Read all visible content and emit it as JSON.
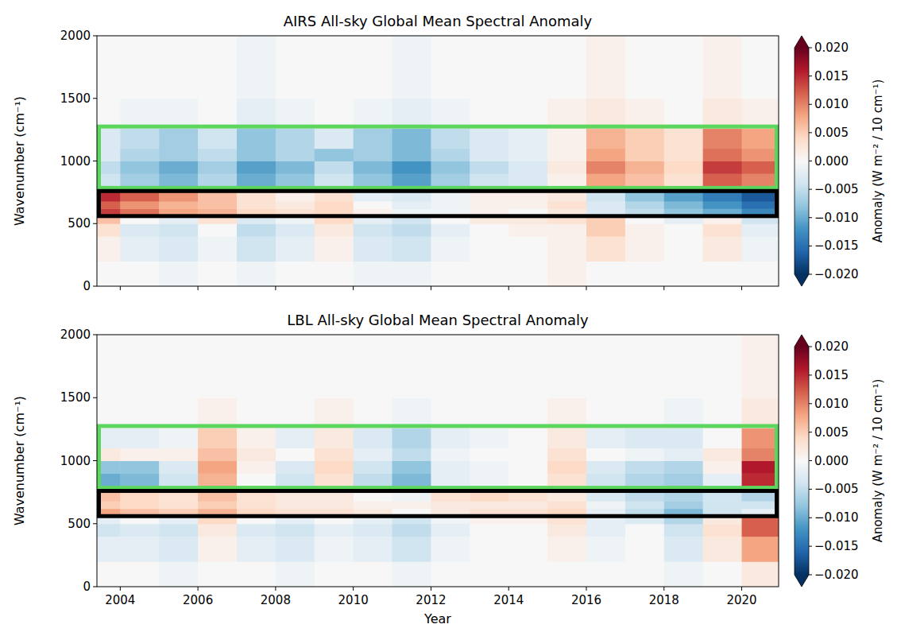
{
  "chart_data": [
    {
      "type": "heatmap",
      "title": "AIRS All-sky Global Mean Spectral Anomaly",
      "y_label": "Wavenumber (cm⁻¹)",
      "xlim": [
        2003.4,
        2020.95
      ],
      "ylim": [
        0,
        2000
      ],
      "xticks": [
        2004,
        2006,
        2008,
        2010,
        2012,
        2014,
        2016,
        2018,
        2020
      ],
      "yticks": [
        0,
        500,
        1000,
        1500,
        2000
      ],
      "tick_labels": "y",
      "grid": false,
      "x_edges": [
        2003.4,
        2004,
        2005,
        2006,
        2007,
        2008,
        2009,
        2010,
        2011,
        2012,
        2013,
        2014,
        2015,
        2016,
        2017,
        2018,
        2019,
        2020,
        2020.95
      ],
      "y_edges": [
        0,
        200,
        400,
        500,
        560,
        620,
        680,
        760,
        800,
        900,
        1000,
        1100,
        1260,
        1500,
        2000
      ],
      "cells": [
        [
          0,
          0,
          -0.001,
          0,
          -0.001,
          0,
          0,
          -0.001,
          -0.001,
          0,
          0,
          0,
          0.001,
          0,
          0,
          0,
          0,
          0
        ],
        [
          0.001,
          -0.002,
          -0.003,
          -0.001,
          -0.004,
          -0.002,
          0.001,
          -0.003,
          -0.004,
          -0.001,
          0,
          0,
          0.001,
          0.003,
          0.001,
          0,
          0.002,
          -0.001
        ],
        [
          0.003,
          -0.003,
          -0.004,
          0,
          -0.005,
          -0.003,
          0.002,
          -0.004,
          -0.005,
          -0.002,
          0,
          0.001,
          0.001,
          0.005,
          0.001,
          0,
          0.003,
          -0.002
        ],
        [
          0.006,
          0,
          -0.002,
          0.003,
          -0.003,
          -0.001,
          0.004,
          -0.002,
          -0.004,
          0,
          0.002,
          0.002,
          0.003,
          0.005,
          0,
          -0.002,
          0.001,
          -0.004
        ],
        [
          0.014,
          0.011,
          0.008,
          0.007,
          0.004,
          0.003,
          0.004,
          0.001,
          -0.001,
          -0.001,
          0.001,
          0,
          0.002,
          -0.003,
          -0.005,
          -0.008,
          -0.01,
          -0.013
        ],
        [
          0.012,
          0.009,
          0.007,
          0.006,
          0.003,
          0.002,
          0.004,
          0,
          -0.002,
          -0.001,
          0.001,
          0.001,
          0.003,
          -0.003,
          -0.006,
          -0.009,
          -0.012,
          -0.015
        ],
        [
          0.015,
          0.012,
          0.009,
          0.006,
          0.003,
          0.001,
          0.003,
          -0.002,
          -0.003,
          -0.001,
          0.001,
          0.001,
          0.002,
          -0.004,
          -0.008,
          -0.011,
          -0.014,
          -0.017
        ],
        [
          0.004,
          0,
          -0.002,
          0.001,
          -0.003,
          -0.002,
          0.002,
          -0.003,
          -0.004,
          -0.002,
          0,
          0.001,
          0.002,
          0.004,
          -0.001,
          -0.002,
          -0.002,
          -0.005
        ],
        [
          -0.004,
          -0.007,
          -0.009,
          -0.006,
          -0.01,
          -0.008,
          -0.004,
          -0.008,
          -0.011,
          -0.007,
          -0.004,
          -0.003,
          0.001,
          0.008,
          0.006,
          0.003,
          0.012,
          0.01
        ],
        [
          -0.005,
          -0.008,
          -0.01,
          -0.007,
          -0.011,
          -0.009,
          -0.005,
          -0.009,
          -0.012,
          -0.008,
          -0.005,
          -0.003,
          0.002,
          0.01,
          0.007,
          0.004,
          0.014,
          0.012
        ],
        [
          -0.003,
          -0.006,
          -0.007,
          -0.005,
          -0.008,
          -0.006,
          -0.008,
          -0.007,
          -0.009,
          -0.006,
          -0.003,
          -0.002,
          0.001,
          0.008,
          0.005,
          0.003,
          0.011,
          0.009
        ],
        [
          -0.003,
          -0.005,
          -0.007,
          -0.004,
          -0.008,
          -0.006,
          -0.003,
          -0.007,
          -0.009,
          -0.005,
          -0.003,
          -0.002,
          0.001,
          0.007,
          0.005,
          0.003,
          0.01,
          0.008
        ],
        [
          0,
          -0.001,
          -0.001,
          0,
          -0.002,
          -0.001,
          0,
          -0.001,
          -0.002,
          -0.001,
          0,
          0,
          0.001,
          0.002,
          0.001,
          0,
          0.002,
          0.001
        ],
        [
          0,
          0,
          0,
          0,
          -0.001,
          0,
          0,
          0,
          -0.001,
          0,
          0,
          0,
          0,
          0.001,
          0,
          0,
          0.001,
          0
        ]
      ],
      "boxes": [
        {
          "color": "#5cd65c",
          "y_range": [
            785,
            1275
          ]
        },
        {
          "color": "#000000",
          "y_range": [
            560,
            760
          ]
        }
      ],
      "colorbar": {
        "label": "Anomaly (W m⁻² / 10 cm⁻¹)",
        "lim": [
          -0.02,
          0.02
        ],
        "ticks": [
          {
            "value": 0.02,
            "label": "0.020"
          },
          {
            "value": 0.015,
            "label": "0.015"
          },
          {
            "value": 0.01,
            "label": "0.010"
          },
          {
            "value": 0.005,
            "label": "0.005"
          },
          {
            "value": 0,
            "label": "0.000"
          },
          {
            "value": -0.005,
            "label": "−0.005"
          },
          {
            "value": -0.01,
            "label": "−0.010"
          },
          {
            "value": -0.015,
            "label": "−0.015"
          },
          {
            "value": -0.02,
            "label": "−0.020"
          }
        ]
      }
    },
    {
      "type": "heatmap",
      "title": "LBL All-sky Global Mean Spectral Anomaly",
      "y_label": "Wavenumber (cm⁻¹)",
      "x_label": "Year",
      "xlim": [
        2003.4,
        2020.95
      ],
      "ylim": [
        0,
        2000
      ],
      "xticks": [
        2004,
        2006,
        2008,
        2010,
        2012,
        2014,
        2016,
        2018,
        2020
      ],
      "yticks": [
        0,
        500,
        1000,
        1500,
        2000
      ],
      "tick_labels": true,
      "grid": false,
      "x_edges": [
        2003.4,
        2004,
        2005,
        2006,
        2007,
        2008,
        2009,
        2010,
        2011,
        2012,
        2013,
        2014,
        2015,
        2016,
        2017,
        2018,
        2019,
        2020,
        2020.95
      ],
      "y_edges": [
        0,
        200,
        400,
        500,
        560,
        620,
        680,
        760,
        800,
        900,
        1000,
        1100,
        1260,
        1500,
        2000
      ],
      "cells": [
        [
          0,
          0,
          -0.001,
          0,
          0,
          -0.001,
          0,
          0,
          -0.001,
          0,
          0,
          0,
          0,
          0,
          0,
          -0.001,
          0,
          0.002
        ],
        [
          -0.002,
          -0.002,
          -0.003,
          0.001,
          -0.002,
          -0.003,
          -0.001,
          -0.002,
          -0.004,
          -0.001,
          0,
          0,
          0.001,
          -0.001,
          0,
          -0.003,
          0.002,
          0.008
        ],
        [
          -0.004,
          -0.003,
          -0.004,
          0.002,
          -0.003,
          -0.004,
          -0.002,
          -0.003,
          -0.005,
          -0.002,
          0,
          0,
          0.002,
          -0.002,
          0,
          -0.004,
          0.003,
          0.012
        ],
        [
          -0.002,
          0,
          -0.002,
          0.004,
          0,
          -0.002,
          0,
          -0.002,
          -0.004,
          -0.001,
          0.001,
          0.001,
          0.003,
          -0.002,
          -0.003,
          -0.006,
          0.002,
          0.012
        ],
        [
          0.008,
          0.006,
          0.005,
          0.007,
          0.004,
          0.003,
          0.003,
          0.002,
          0,
          0.002,
          0.003,
          0.003,
          0.004,
          -0.002,
          -0.005,
          -0.009,
          -0.004,
          -0.002
        ],
        [
          0.005,
          0.004,
          0.003,
          0.005,
          0.003,
          0.002,
          0.002,
          0.001,
          0.001,
          0.002,
          0.002,
          0.002,
          0.003,
          -0.001,
          -0.004,
          -0.007,
          -0.004,
          -0.004
        ],
        [
          0.006,
          0.004,
          0.003,
          0.006,
          0.003,
          0.002,
          0.002,
          0,
          -0.001,
          0.003,
          0.004,
          0.003,
          0.002,
          -0.003,
          -0.005,
          -0.006,
          -0.004,
          -0.006
        ],
        [
          -0.004,
          -0.003,
          -0.002,
          0.004,
          0,
          -0.002,
          0.001,
          -0.001,
          -0.003,
          0,
          0.001,
          0,
          0.002,
          -0.002,
          -0.003,
          -0.005,
          0.001,
          0.008
        ],
        [
          -0.01,
          -0.009,
          -0.004,
          0.007,
          0,
          -0.004,
          0.003,
          -0.005,
          -0.009,
          -0.002,
          -0.001,
          0,
          0.003,
          -0.004,
          -0.006,
          -0.007,
          -0.002,
          0.015
        ],
        [
          -0.008,
          -0.008,
          -0.003,
          0.008,
          0.001,
          -0.003,
          0.004,
          -0.004,
          -0.008,
          -0.002,
          -0.001,
          0,
          0.004,
          -0.003,
          -0.005,
          -0.006,
          0.001,
          0.016
        ],
        [
          0.002,
          0.001,
          0.001,
          0.006,
          0.002,
          0,
          0.003,
          -0.002,
          -0.005,
          -0.001,
          0,
          0,
          0.003,
          0,
          -0.001,
          -0.002,
          0.002,
          0.01
        ],
        [
          -0.002,
          -0.002,
          -0.001,
          0.005,
          0.001,
          -0.002,
          0.002,
          -0.003,
          -0.006,
          -0.002,
          -0.001,
          0,
          0.002,
          -0.002,
          -0.003,
          -0.003,
          0,
          0.009
        ],
        [
          0,
          0,
          0,
          0.001,
          0,
          0,
          0.001,
          0,
          -0.001,
          0,
          0,
          0,
          0.001,
          0,
          0,
          -0.001,
          0,
          0.002
        ],
        [
          0,
          0,
          0,
          0,
          0,
          0,
          0,
          0,
          0,
          0,
          0,
          0,
          0,
          0,
          0,
          0,
          0,
          0.001
        ]
      ],
      "boxes": [
        {
          "color": "#5cd65c",
          "y_range": [
            785,
            1275
          ]
        },
        {
          "color": "#000000",
          "y_range": [
            560,
            760
          ]
        }
      ],
      "colorbar": {
        "label": "Anomaly (W m⁻² / 10 cm⁻¹)",
        "lim": [
          -0.02,
          0.02
        ],
        "ticks": [
          {
            "value": 0.02,
            "label": "0.020"
          },
          {
            "value": 0.015,
            "label": "0.015"
          },
          {
            "value": 0.01,
            "label": "0.010"
          },
          {
            "value": 0.005,
            "label": "0.005"
          },
          {
            "value": 0,
            "label": "0.000"
          },
          {
            "value": -0.005,
            "label": "−0.005"
          },
          {
            "value": -0.01,
            "label": "−0.010"
          },
          {
            "value": -0.015,
            "label": "−0.015"
          },
          {
            "value": -0.02,
            "label": "−0.020"
          }
        ]
      }
    }
  ]
}
